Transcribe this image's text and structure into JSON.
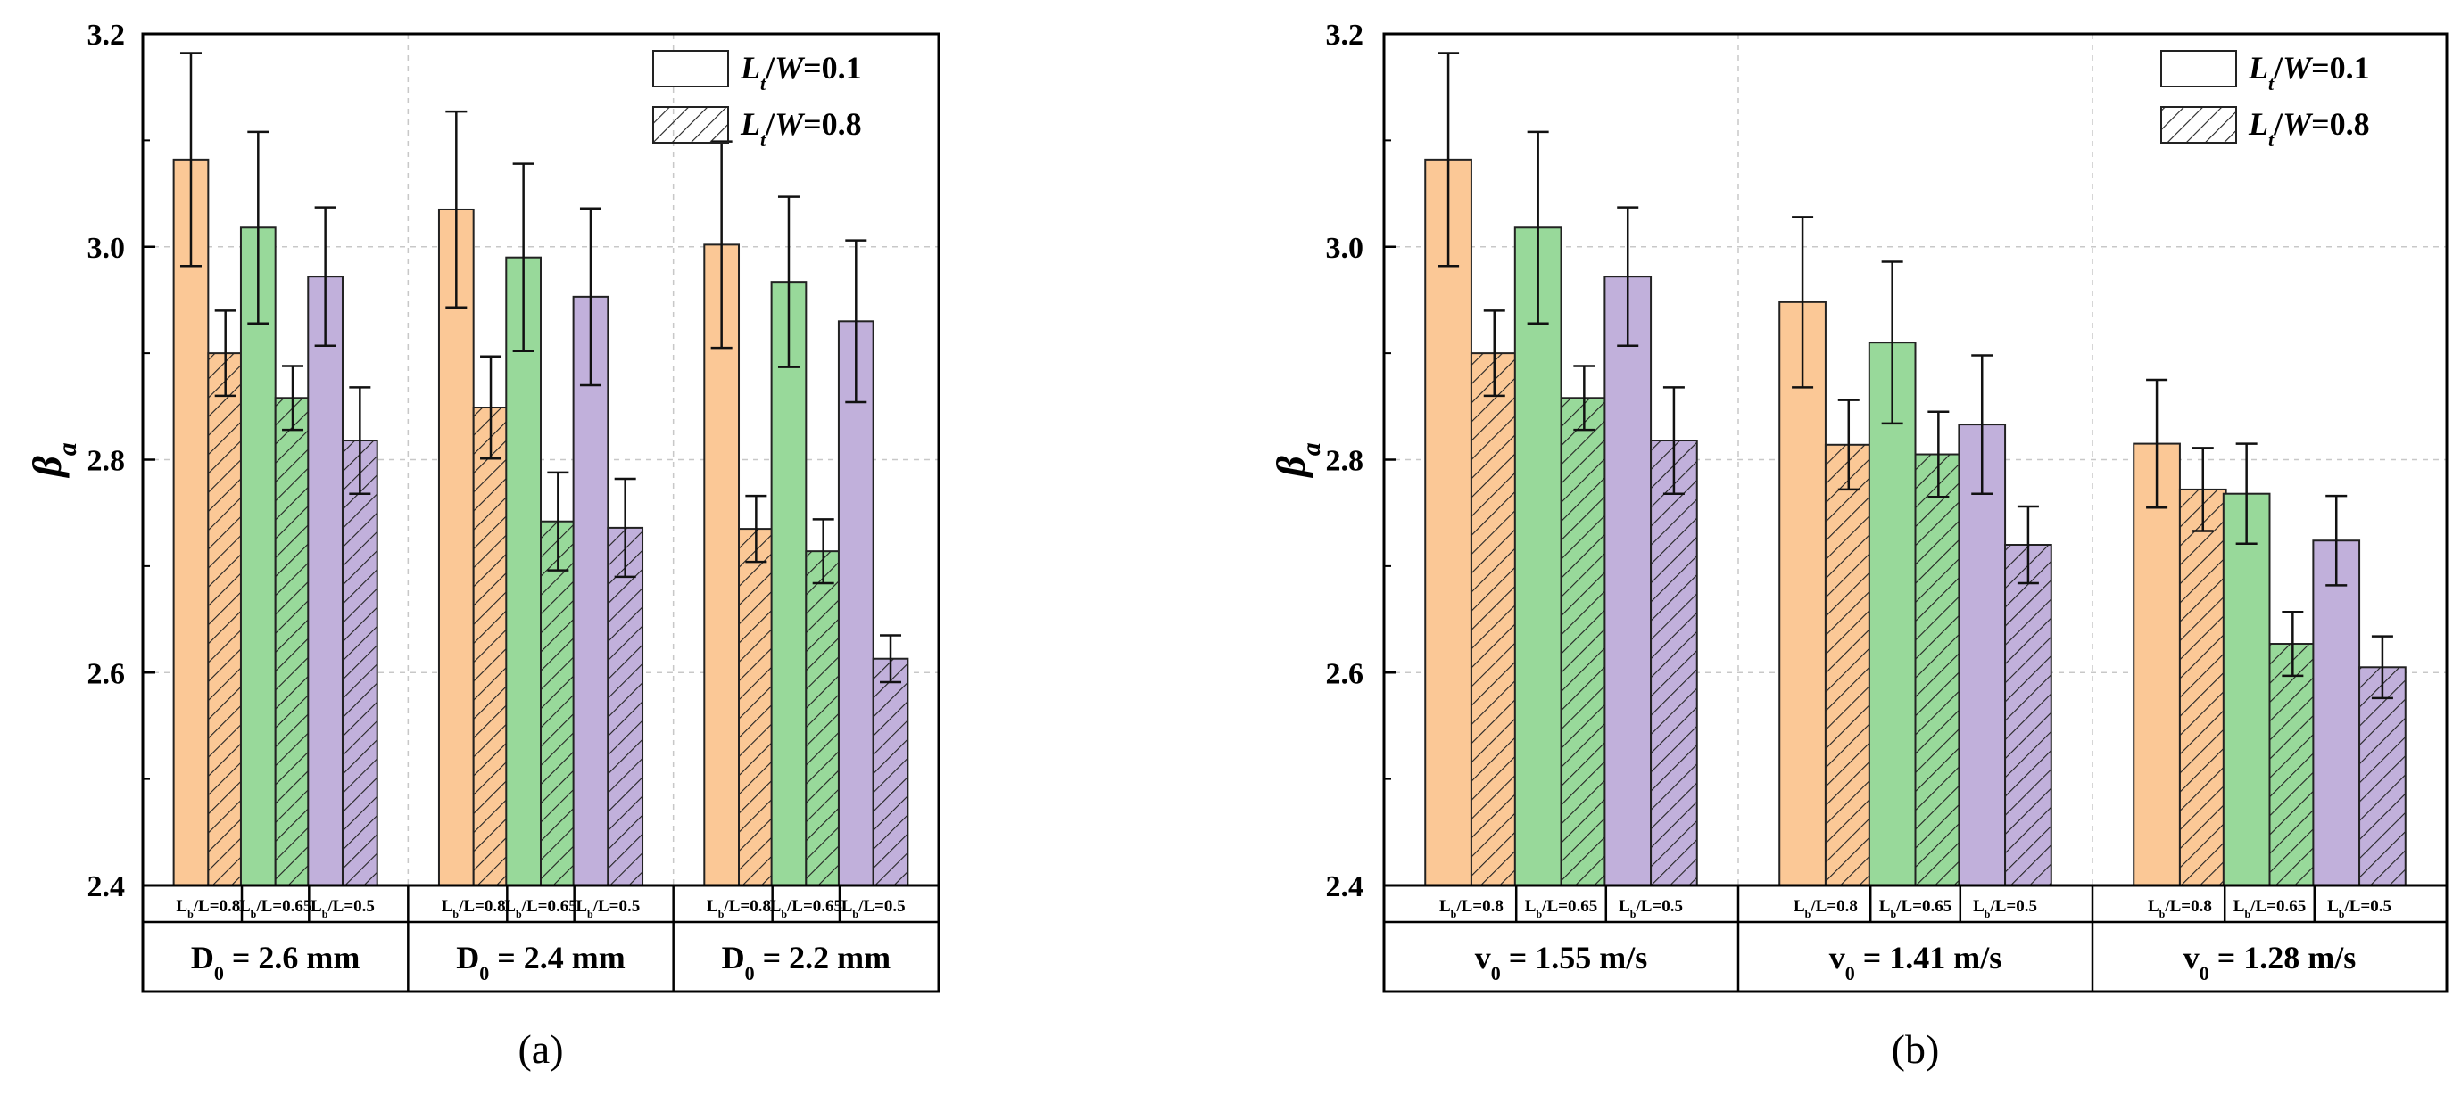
{
  "chart_data": [
    {
      "type": "bar",
      "panel_label": "(a)",
      "ylabel": "β",
      "ylabel_sub": "a",
      "ylim": [
        2.4,
        3.2
      ],
      "yticks": [
        "2.4",
        "2.6",
        "2.8",
        "3.0",
        "3.2"
      ],
      "grid": true,
      "legend_position": "top-right",
      "legend": [
        {
          "pre": "L",
          "sub": "t",
          "post": "/W=0.1",
          "hatched": false
        },
        {
          "pre": "L",
          "sub": "t",
          "post": "/W=0.8",
          "hatched": true
        }
      ],
      "groups": [
        {
          "label": "D",
          "label_sub": "0",
          "label_post": " = 2.6 mm",
          "bars": [
            {
              "category": {
                "pre": "L",
                "sub": "b",
                "post": "/L=0.8"
              },
              "color": "#FBC896",
              "solid": 3.082,
              "solid_err": 0.1,
              "hatched": 2.9,
              "hatched_err": 0.04
            },
            {
              "category": {
                "pre": "L",
                "sub": "b",
                "post": "/L=0.65"
              },
              "color": "#98D99A",
              "solid": 3.018,
              "solid_err": 0.09,
              "hatched": 2.858,
              "hatched_err": 0.03
            },
            {
              "category": {
                "pre": "L",
                "sub": "b",
                "post": "/L=0.5"
              },
              "color": "#C1B0DB",
              "solid": 2.972,
              "solid_err": 0.065,
              "hatched": 2.818,
              "hatched_err": 0.05
            }
          ]
        },
        {
          "label": "D",
          "label_sub": "0",
          "label_post": " = 2.4 mm",
          "bars": [
            {
              "category": {
                "pre": "L",
                "sub": "b",
                "post": "/L=0.8"
              },
              "color": "#FBC896",
              "solid": 3.035,
              "solid_err": 0.092,
              "hatched": 2.849,
              "hatched_err": 0.048
            },
            {
              "category": {
                "pre": "L",
                "sub": "b",
                "post": "/L=0.65"
              },
              "color": "#98D99A",
              "solid": 2.99,
              "solid_err": 0.088,
              "hatched": 2.742,
              "hatched_err": 0.046
            },
            {
              "category": {
                "pre": "L",
                "sub": "b",
                "post": "/L=0.5"
              },
              "color": "#C1B0DB",
              "solid": 2.953,
              "solid_err": 0.083,
              "hatched": 2.736,
              "hatched_err": 0.046
            }
          ]
        },
        {
          "label": "D",
          "label_sub": "0",
          "label_post": " = 2.2 mm",
          "bars": [
            {
              "category": {
                "pre": "L",
                "sub": "b",
                "post": "/L=0.8"
              },
              "color": "#FBC896",
              "solid": 3.002,
              "solid_err": 0.097,
              "hatched": 2.735,
              "hatched_err": 0.031
            },
            {
              "category": {
                "pre": "L",
                "sub": "b",
                "post": "/L=0.65"
              },
              "color": "#98D99A",
              "solid": 2.967,
              "solid_err": 0.08,
              "hatched": 2.714,
              "hatched_err": 0.03
            },
            {
              "category": {
                "pre": "L",
                "sub": "b",
                "post": "/L=0.5"
              },
              "color": "#C1B0DB",
              "solid": 2.93,
              "solid_err": 0.076,
              "hatched": 2.613,
              "hatched_err": 0.022
            }
          ]
        }
      ]
    },
    {
      "type": "bar",
      "panel_label": "(b)",
      "ylabel": "β",
      "ylabel_sub": "a",
      "ylim": [
        2.4,
        3.2
      ],
      "yticks": [
        "2.4",
        "2.6",
        "2.8",
        "3.0",
        "3.2"
      ],
      "grid": true,
      "legend_position": "top-right",
      "legend": [
        {
          "pre": "L",
          "sub": "t",
          "post": "/W=0.1",
          "hatched": false
        },
        {
          "pre": "L",
          "sub": "t",
          "post": "/W=0.8",
          "hatched": true
        }
      ],
      "groups": [
        {
          "label": "v",
          "label_sub": "0",
          "label_post": " = 1.55 m/s",
          "bars": [
            {
              "category": {
                "pre": "L",
                "sub": "b",
                "post": "/L=0.8"
              },
              "color": "#FBC896",
              "solid": 3.082,
              "solid_err": 0.1,
              "hatched": 2.9,
              "hatched_err": 0.04
            },
            {
              "category": {
                "pre": "L",
                "sub": "b",
                "post": "/L=0.65"
              },
              "color": "#98D99A",
              "solid": 3.018,
              "solid_err": 0.09,
              "hatched": 2.858,
              "hatched_err": 0.03
            },
            {
              "category": {
                "pre": "L",
                "sub": "b",
                "post": "/L=0.5"
              },
              "color": "#C1B0DB",
              "solid": 2.972,
              "solid_err": 0.065,
              "hatched": 2.818,
              "hatched_err": 0.05
            }
          ]
        },
        {
          "label": "v",
          "label_sub": "0",
          "label_post": " = 1.41 m/s",
          "bars": [
            {
              "category": {
                "pre": "L",
                "sub": "b",
                "post": "/L=0.8"
              },
              "color": "#FBC896",
              "solid": 2.948,
              "solid_err": 0.08,
              "hatched": 2.814,
              "hatched_err": 0.042
            },
            {
              "category": {
                "pre": "L",
                "sub": "b",
                "post": "/L=0.65"
              },
              "color": "#98D99A",
              "solid": 2.91,
              "solid_err": 0.076,
              "hatched": 2.805,
              "hatched_err": 0.04
            },
            {
              "category": {
                "pre": "L",
                "sub": "b",
                "post": "/L=0.5"
              },
              "color": "#C1B0DB",
              "solid": 2.833,
              "solid_err": 0.065,
              "hatched": 2.72,
              "hatched_err": 0.036
            }
          ]
        },
        {
          "label": "v",
          "label_sub": "0",
          "label_post": " = 1.28 m/s",
          "bars": [
            {
              "category": {
                "pre": "L",
                "sub": "b",
                "post": "/L=0.8"
              },
              "color": "#FBC896",
              "solid": 2.815,
              "solid_err": 0.06,
              "hatched": 2.772,
              "hatched_err": 0.039
            },
            {
              "category": {
                "pre": "L",
                "sub": "b",
                "post": "/L=0.65"
              },
              "color": "#98D99A",
              "solid": 2.768,
              "solid_err": 0.047,
              "hatched": 2.627,
              "hatched_err": 0.03
            },
            {
              "category": {
                "pre": "L",
                "sub": "b",
                "post": "/L=0.5"
              },
              "color": "#C1B0DB",
              "solid": 2.724,
              "solid_err": 0.042,
              "hatched": 2.605,
              "hatched_err": 0.029
            }
          ]
        }
      ]
    }
  ]
}
